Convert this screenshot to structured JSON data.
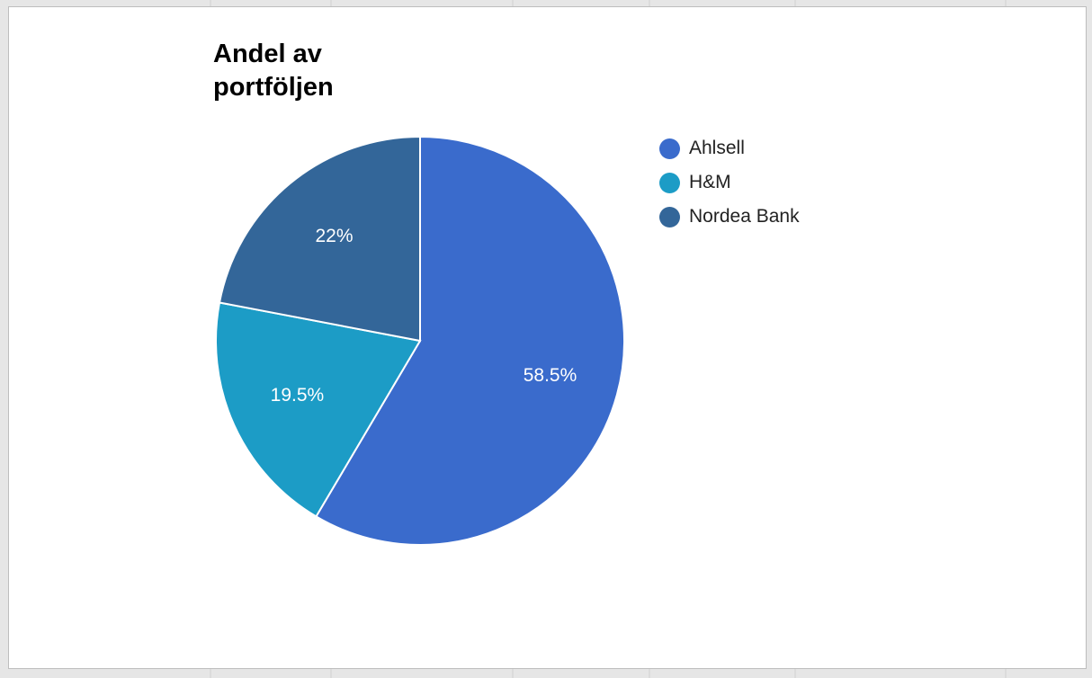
{
  "chart_data": {
    "type": "pie",
    "title": "Andel av portföljen",
    "categories": [
      "Ahlsell",
      "H&M",
      "Nordea Bank"
    ],
    "values": [
      58.5,
      19.5,
      22
    ],
    "labels": [
      "58.5%",
      "19.5%",
      "22%"
    ],
    "colors": [
      "#3a6bcc",
      "#1c9cc6",
      "#336699"
    ],
    "legend": "right"
  }
}
